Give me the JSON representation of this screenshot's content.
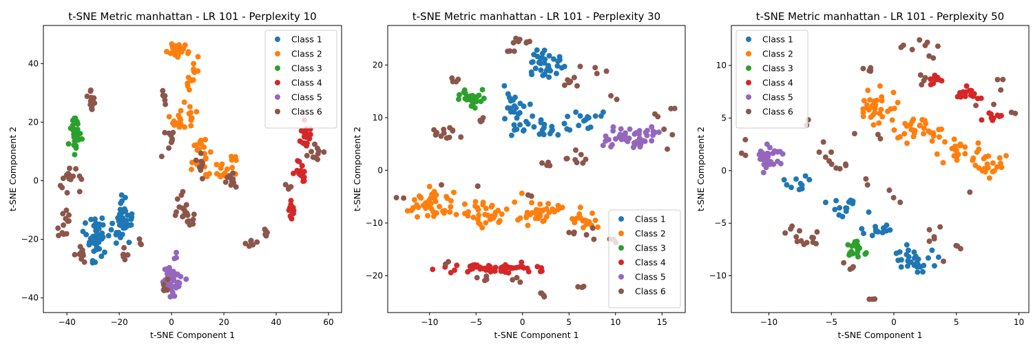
{
  "colors": {
    "Class 1": "#1f77b4",
    "Class 2": "#ff7f0e",
    "Class 3": "#2ca02c",
    "Class 4": "#d62728",
    "Class 5": "#9467bd",
    "Class 6": "#8c564b"
  },
  "chart_data": [
    {
      "type": "scatter",
      "title": "t-SNE Metric manhattan - LR 101 - Perplexity 10",
      "xlabel": "t-SNE Component 1",
      "ylabel": "t-SNE Component 2",
      "xlim": [
        -49,
        65
      ],
      "ylim": [
        -45,
        53
      ],
      "xticks": [
        -40,
        -20,
        0,
        20,
        40,
        60
      ],
      "yticks": [
        -40,
        -20,
        0,
        20,
        40
      ],
      "legend_position": "top-right",
      "series": [
        {
          "name": "Class 1",
          "clusters": [
            {
              "cx": -29,
              "cy": -21,
              "sx": 3.5,
              "sy": 6,
              "n": 45
            },
            {
              "cx": -19,
              "cy": -15,
              "sx": 2.5,
              "sy": 6,
              "n": 45
            }
          ]
        },
        {
          "name": "Class 2",
          "clusters": [
            {
              "cx": 2,
              "cy": 45,
              "sx": 4,
              "sy": 2,
              "n": 25
            },
            {
              "cx": 8,
              "cy": 36,
              "sx": 2,
              "sy": 4,
              "n": 12
            },
            {
              "cx": 4,
              "cy": 22,
              "sx": 4,
              "sy": 5,
              "n": 22
            },
            {
              "cx": 11,
              "cy": 8,
              "sx": 3,
              "sy": 4,
              "n": 20
            },
            {
              "cx": 19,
              "cy": 3,
              "sx": 3,
              "sy": 2,
              "n": 14
            },
            {
              "cx": 23,
              "cy": 7,
              "sx": 2,
              "sy": 2,
              "n": 6
            }
          ]
        },
        {
          "name": "Class 3",
          "clusters": [
            {
              "cx": -37,
              "cy": 16,
              "sx": 1.5,
              "sy": 4,
              "n": 32
            }
          ]
        },
        {
          "name": "Class 4",
          "clusters": [
            {
              "cx": 46,
              "cy": -10,
              "sx": 1,
              "sy": 3,
              "n": 15
            },
            {
              "cx": 49,
              "cy": 3,
              "sx": 1.5,
              "sy": 3,
              "n": 15
            },
            {
              "cx": 51,
              "cy": 15,
              "sx": 1.5,
              "sy": 3,
              "n": 20
            }
          ]
        },
        {
          "name": "Class 5",
          "clusters": [
            {
              "cx": 0,
              "cy": -33,
              "sx": 3,
              "sy": 4,
              "n": 45
            }
          ]
        },
        {
          "name": "Class 6",
          "clusters": [
            {
              "cx": -31,
              "cy": 26,
              "sx": 1,
              "sy": 4,
              "n": 12
            },
            {
              "cx": -38,
              "cy": 1,
              "sx": 3,
              "sy": 3,
              "n": 16
            },
            {
              "cx": -41,
              "cy": -14,
              "sx": 2,
              "sy": 4,
              "n": 12
            },
            {
              "cx": -34,
              "cy": -24,
              "sx": 1.5,
              "sy": 3,
              "n": 10
            },
            {
              "cx": -18,
              "cy": -27,
              "sx": 2,
              "sy": 2,
              "n": 6
            },
            {
              "cx": -12,
              "cy": -21,
              "sx": 0.5,
              "sy": 1,
              "n": 3
            },
            {
              "cx": -3,
              "cy": 29,
              "sx": 1,
              "sy": 3,
              "n": 6
            },
            {
              "cx": 0,
              "cy": 15,
              "sx": 1.5,
              "sy": 3,
              "n": 8
            },
            {
              "cx": 3,
              "cy": -9,
              "sx": 2,
              "sy": 5,
              "n": 14
            },
            {
              "cx": 7,
              "cy": -14,
              "sx": 2,
              "sy": 2,
              "n": 6
            },
            {
              "cx": -2,
              "cy": -36,
              "sx": 1,
              "sy": 2,
              "n": 5
            },
            {
              "cx": 11,
              "cy": 4,
              "sx": 1.5,
              "sy": 3,
              "n": 8
            },
            {
              "cx": 23,
              "cy": 0,
              "sx": 2,
              "sy": 3,
              "n": 10
            },
            {
              "cx": 30,
              "cy": -21,
              "sx": 2,
              "sy": 1,
              "n": 6
            },
            {
              "cx": 36,
              "cy": -18,
              "sx": 1,
              "sy": 2,
              "n": 6
            },
            {
              "cx": 45,
              "cy": -2,
              "sx": 1,
              "sy": 1,
              "n": 4
            },
            {
              "cx": 56,
              "cy": 8,
              "sx": 3,
              "sy": 3,
              "n": 10
            },
            {
              "cx": -4,
              "cy": 8,
              "sx": 0.5,
              "sy": 0.5,
              "n": 1
            }
          ]
        }
      ]
    },
    {
      "type": "scatter",
      "title": "t-SNE Metric manhattan - LR 101 - Perplexity 30",
      "xlabel": "t-SNE Component 1",
      "ylabel": "t-SNE Component 2",
      "xlim": [
        -14.5,
        17.5
      ],
      "ylim": [
        -27,
        27.5
      ],
      "xticks": [
        -10,
        -5,
        0,
        5,
        10,
        15
      ],
      "yticks": [
        -20,
        -10,
        0,
        10,
        20
      ],
      "legend_position": "bottom-right",
      "series": [
        {
          "name": "Class 1",
          "clusters": [
            {
              "cx": 2.5,
              "cy": 20,
              "sx": 1.5,
              "sy": 2,
              "n": 35
            },
            {
              "cx": -0.5,
              "cy": 12,
              "sx": 1.5,
              "sy": 3,
              "n": 25
            },
            {
              "cx": 2.5,
              "cy": 8,
              "sx": 2.5,
              "sy": 1.3,
              "n": 20
            },
            {
              "cx": 7,
              "cy": 10,
              "sx": 1.5,
              "sy": 1.5,
              "n": 15
            }
          ]
        },
        {
          "name": "Class 2",
          "clusters": [
            {
              "cx": -10,
              "cy": -7,
              "sx": 2,
              "sy": 2,
              "n": 40
            },
            {
              "cx": -4,
              "cy": -8,
              "sx": 2,
              "sy": 2,
              "n": 35
            },
            {
              "cx": 2,
              "cy": -8,
              "sx": 2,
              "sy": 1.8,
              "n": 35
            },
            {
              "cx": 6.5,
              "cy": -10,
              "sx": 1.3,
              "sy": 1.5,
              "n": 18
            }
          ]
        },
        {
          "name": "Class 3",
          "clusters": [
            {
              "cx": -5.5,
              "cy": 14,
              "sx": 0.8,
              "sy": 1.2,
              "n": 28
            }
          ]
        },
        {
          "name": "Class 4",
          "clusters": [
            {
              "cx": -3,
              "cy": -18.5,
              "sx": 3.5,
              "sy": 0.7,
              "n": 55
            }
          ]
        },
        {
          "name": "Class 5",
          "clusters": [
            {
              "cx": 12,
              "cy": 6,
              "sx": 2,
              "sy": 1.5,
              "n": 48
            }
          ]
        },
        {
          "name": "Class 6",
          "clusters": [
            {
              "cx": 0,
              "cy": 24,
              "sx": 0.8,
              "sy": 0.6,
              "n": 7
            },
            {
              "cx": -1,
              "cy": 22.5,
              "sx": 0.5,
              "sy": 0.5,
              "n": 3
            },
            {
              "cx": 5,
              "cy": 17,
              "sx": 0.8,
              "sy": 1.5,
              "n": 7
            },
            {
              "cx": -7,
              "cy": 17,
              "sx": 0.8,
              "sy": 0.5,
              "n": 4
            },
            {
              "cx": -8,
              "cy": 7.5,
              "sx": 1.2,
              "sy": 1.5,
              "n": 12
            },
            {
              "cx": -4,
              "cy": 9,
              "sx": 1,
              "sy": 1,
              "n": 4
            },
            {
              "cx": 5.5,
              "cy": 2.5,
              "sx": 1,
              "sy": 1,
              "n": 8
            },
            {
              "cx": 2.5,
              "cy": 1,
              "sx": 0.8,
              "sy": 0.5,
              "n": 4
            },
            {
              "cx": 8,
              "cy": 19,
              "sx": 0.8,
              "sy": 1,
              "n": 4
            },
            {
              "cx": 10,
              "cy": 13.5,
              "sx": 0.5,
              "sy": 0.5,
              "n": 2
            },
            {
              "cx": 14.5,
              "cy": 10.5,
              "sx": 0.5,
              "sy": 0.5,
              "n": 2
            },
            {
              "cx": 16.5,
              "cy": 11.5,
              "sx": 0.5,
              "sy": 0.3,
              "n": 2
            },
            {
              "cx": 15.5,
              "cy": 6,
              "sx": 0.5,
              "sy": 1.5,
              "n": 3
            },
            {
              "cx": -13,
              "cy": -5.5,
              "sx": 0.3,
              "sy": 0.5,
              "n": 2
            },
            {
              "cx": -8.5,
              "cy": -3,
              "sx": 0.3,
              "sy": 0.3,
              "n": 1
            },
            {
              "cx": -5,
              "cy": -3,
              "sx": 0.5,
              "sy": 0.3,
              "n": 2
            },
            {
              "cx": 1,
              "cy": -5,
              "sx": 0.5,
              "sy": 0.5,
              "n": 2
            },
            {
              "cx": 5.5,
              "cy": -12,
              "sx": 0.5,
              "sy": 1,
              "n": 3
            },
            {
              "cx": 7.5,
              "cy": -12,
              "sx": 0.5,
              "sy": 1,
              "n": 3
            },
            {
              "cx": 10,
              "cy": -13.5,
              "sx": 0.3,
              "sy": 0.5,
              "n": 3
            },
            {
              "cx": -8,
              "cy": -17.5,
              "sx": 0.5,
              "sy": 0.5,
              "n": 2
            },
            {
              "cx": -4.5,
              "cy": -20.5,
              "sx": 0.8,
              "sy": 0.5,
              "n": 4
            },
            {
              "cx": -1,
              "cy": -21,
              "sx": 0.5,
              "sy": 0.8,
              "n": 3
            },
            {
              "cx": 2,
              "cy": -23.5,
              "sx": 0.5,
              "sy": 0.5,
              "n": 4
            },
            {
              "cx": 6,
              "cy": -22,
              "sx": 0.5,
              "sy": 0.5,
              "n": 3
            }
          ]
        }
      ]
    },
    {
      "type": "scatter",
      "title": "t-SNE Metric manhattan - LR 101 - Perplexity 50",
      "xlabel": "t-SNE Component 1",
      "ylabel": "t-SNE Component 2",
      "xlim": [
        -13,
        10.8
      ],
      "ylim": [
        -13.5,
        13.8
      ],
      "xticks": [
        -10,
        -5,
        0,
        5,
        10
      ],
      "yticks": [
        -10,
        -5,
        0,
        5,
        10
      ],
      "legend_position": "top-left",
      "series": [
        {
          "name": "Class 1",
          "clusters": [
            {
              "cx": -8,
              "cy": -1.2,
              "sx": 1.2,
              "sy": 0.6,
              "n": 10
            },
            {
              "cx": -4,
              "cy": -3.5,
              "sx": 1,
              "sy": 0.8,
              "n": 14
            },
            {
              "cx": -1,
              "cy": -5.7,
              "sx": 1,
              "sy": 0.5,
              "n": 12
            },
            {
              "cx": 1.5,
              "cy": -8.5,
              "sx": 1.3,
              "sy": 1,
              "n": 30
            }
          ]
        },
        {
          "name": "Class 2",
          "clusters": [
            {
              "cx": -1.5,
              "cy": 6,
              "sx": 1,
              "sy": 1.3,
              "n": 30
            },
            {
              "cx": 1.5,
              "cy": 4,
              "sx": 1.5,
              "sy": 1.2,
              "n": 30
            },
            {
              "cx": 5,
              "cy": 2,
              "sx": 1.2,
              "sy": 1,
              "n": 25
            },
            {
              "cx": 7.5,
              "cy": 0.5,
              "sx": 1,
              "sy": 0.8,
              "n": 20
            }
          ]
        },
        {
          "name": "Class 3",
          "clusters": [
            {
              "cx": -3,
              "cy": -7.5,
              "sx": 0.6,
              "sy": 0.8,
              "n": 20
            }
          ]
        },
        {
          "name": "Class 4",
          "clusters": [
            {
              "cx": 3.5,
              "cy": 8.8,
              "sx": 0.5,
              "sy": 0.5,
              "n": 10
            },
            {
              "cx": 6,
              "cy": 7.2,
              "sx": 0.8,
              "sy": 0.6,
              "n": 15
            },
            {
              "cx": 8,
              "cy": 5,
              "sx": 0.5,
              "sy": 0.5,
              "n": 10
            }
          ]
        },
        {
          "name": "Class 5",
          "clusters": [
            {
              "cx": -10,
              "cy": 1.5,
              "sx": 0.8,
              "sy": 0.8,
              "n": 35
            }
          ]
        },
        {
          "name": "Class 6",
          "clusters": [
            {
              "cx": -12,
              "cy": 2.5,
              "sx": 0.5,
              "sy": 0.8,
              "n": 3
            },
            {
              "cx": -7,
              "cy": 4.5,
              "sx": 0.5,
              "sy": 0.5,
              "n": 2
            },
            {
              "cx": -5.5,
              "cy": 1.5,
              "sx": 0.8,
              "sy": 1.2,
              "n": 6
            },
            {
              "cx": -4,
              "cy": 0.5,
              "sx": 0.5,
              "sy": 0.5,
              "n": 4
            },
            {
              "cx": -7,
              "cy": -6.5,
              "sx": 1.2,
              "sy": 0.8,
              "n": 14
            },
            {
              "cx": -3.5,
              "cy": -9,
              "sx": 0.5,
              "sy": 0.5,
              "n": 4
            },
            {
              "cx": -2,
              "cy": 9.5,
              "sx": 0.3,
              "sy": 0.3,
              "n": 5
            },
            {
              "cx": -1.5,
              "cy": -12.3,
              "sx": 0.3,
              "sy": 0.2,
              "n": 3
            },
            {
              "cx": 1.5,
              "cy": 12.2,
              "sx": 1,
              "sy": 0.3,
              "n": 4
            },
            {
              "cx": 3,
              "cy": 11.5,
              "sx": 0.5,
              "sy": 0.8,
              "n": 5
            },
            {
              "cx": 2.5,
              "cy": 8.5,
              "sx": 0.5,
              "sy": 0.5,
              "n": 4
            },
            {
              "cx": 3,
              "cy": -6,
              "sx": 0.5,
              "sy": 0.5,
              "n": 5
            },
            {
              "cx": 5,
              "cy": -7,
              "sx": 0.3,
              "sy": 0.3,
              "n": 3
            },
            {
              "cx": 7,
              "cy": 6.5,
              "sx": 0.5,
              "sy": 0.5,
              "n": 2
            },
            {
              "cx": 8.5,
              "cy": 8.5,
              "sx": 0.5,
              "sy": 0.5,
              "n": 3
            },
            {
              "cx": 9.5,
              "cy": 5,
              "sx": 0.5,
              "sy": 0.5,
              "n": 2
            },
            {
              "cx": 4.5,
              "cy": -9,
              "sx": 0.3,
              "sy": 0.3,
              "n": 1
            },
            {
              "cx": -2.5,
              "cy": -0.5,
              "sx": 0.5,
              "sy": 0.5,
              "n": 2
            },
            {
              "cx": 0,
              "cy": -2,
              "sx": 0.3,
              "sy": 0.3,
              "n": 1
            },
            {
              "cx": 1,
              "cy": -2.5,
              "sx": 0.5,
              "sy": 0.5,
              "n": 2
            },
            {
              "cx": -1,
              "cy": 3,
              "sx": 0.5,
              "sy": 0.5,
              "n": 2
            },
            {
              "cx": -3,
              "cy": 3.5,
              "sx": 0.3,
              "sy": 0.3,
              "n": 1
            },
            {
              "cx": 6,
              "cy": -2,
              "sx": 0.3,
              "sy": 0.3,
              "n": 1
            }
          ]
        }
      ]
    }
  ]
}
